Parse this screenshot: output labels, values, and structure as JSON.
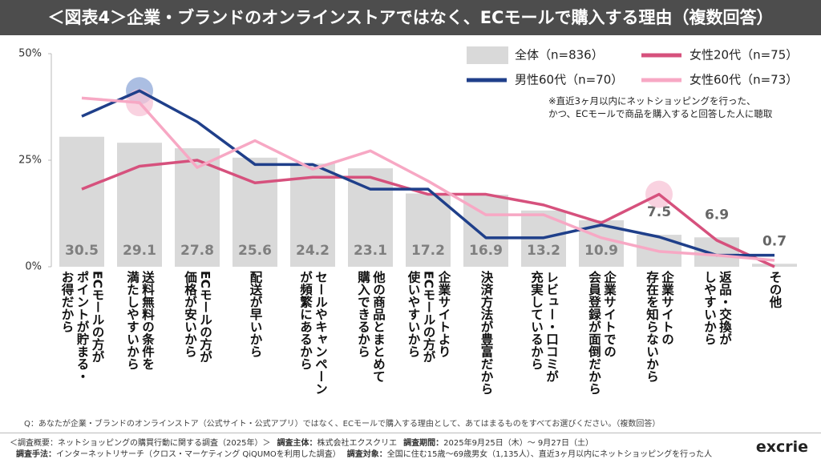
{
  "title": "＜図表4＞企業・ブランドのオンラインストアではなく、ECモールで購入する理由（複数回答）",
  "chart_data": {
    "type": "bar-line",
    "categories": [
      "ECモールの方が\nポイントが貯まる・\nお得だから",
      "送料無料の条件を\n満たしやすいから",
      "ECモールの方が\n価格が安いから",
      "配送が早いから",
      "セールやキャンペーン\nが頻繁にあるから",
      "他の商品とまとめて\n購入できるから",
      "企業サイトより\nECモールの方が\n使いやすいから",
      "決済方法が豊富だから",
      "レビュー・口コミが\n充実しているから",
      "企業サイトでの\n会員登録が面倒だから",
      "企業サイトの\n存在を知らないから",
      "返品・交換が\nしやすいから",
      "その他"
    ],
    "series": [
      {
        "name": "全体（n=836）",
        "kind": "bar",
        "color": "#d9d9d9",
        "values": [
          30.5,
          29.1,
          27.8,
          25.6,
          24.2,
          23.1,
          17.2,
          16.9,
          13.2,
          10.9,
          7.5,
          6.9,
          0.7
        ]
      },
      {
        "name": "女性20代（n=75）",
        "kind": "line",
        "color": "#d6517d",
        "values": [
          18.2,
          23.6,
          25,
          19.7,
          21,
          21,
          17,
          17,
          14.5,
          10.3,
          17,
          6.2,
          0
        ]
      },
      {
        "name": "男性60代（n=70）",
        "kind": "line",
        "color": "#1f3f8a",
        "values": [
          35.3,
          41.3,
          34,
          24,
          24,
          18.2,
          18.2,
          6.8,
          6.8,
          9.8,
          7,
          2.7,
          2.7
        ]
      },
      {
        "name": "女性60代（n=73）",
        "kind": "line",
        "color": "#f7a8c4",
        "values": [
          39.6,
          38.5,
          23.3,
          29.6,
          22.9,
          27.2,
          20.1,
          12.2,
          12.2,
          6.8,
          3.6,
          2.7,
          1.5
        ]
      }
    ],
    "ylim": [
      0,
      50
    ],
    "yticks": [
      {
        "value": 0,
        "label": "0%"
      },
      {
        "value": 25,
        "label": "25%"
      },
      {
        "value": 50,
        "label": "50%"
      }
    ],
    "note": "※直近3ヶ月以内にネットショッピングを行った、\nかつ、ECモールで商品を購入すると回答した人に聴取"
  },
  "question": "Q：あなたが企業・ブランドのオンラインストア（公式サイト・公式アプリ）ではなく、ECモールで購入する理由として、あてはまるものをすべてお選びください。（複数回答）",
  "footer": {
    "line1": [
      {
        "text": "＜調査概要：ネットショッピングの購買行動に関する調査（2025年）＞"
      },
      {
        "label": "調査主体：",
        "text": "株式会社エクスクリエ"
      },
      {
        "label": "調査期間：",
        "text": "2025年9月25日（木）～ 9月27日（土）"
      }
    ],
    "line2": [
      {
        "label": "調査手法：",
        "text": "インターネットリサーチ（クロス・マーケティング QiQUMOを利用した調査）"
      },
      {
        "label": "調査対象：",
        "text": "全国に住む15歳～69歳男女（1,135人）、直近3ヶ月以内にネットショッピングを行った人"
      }
    ],
    "logo": "excrie"
  }
}
